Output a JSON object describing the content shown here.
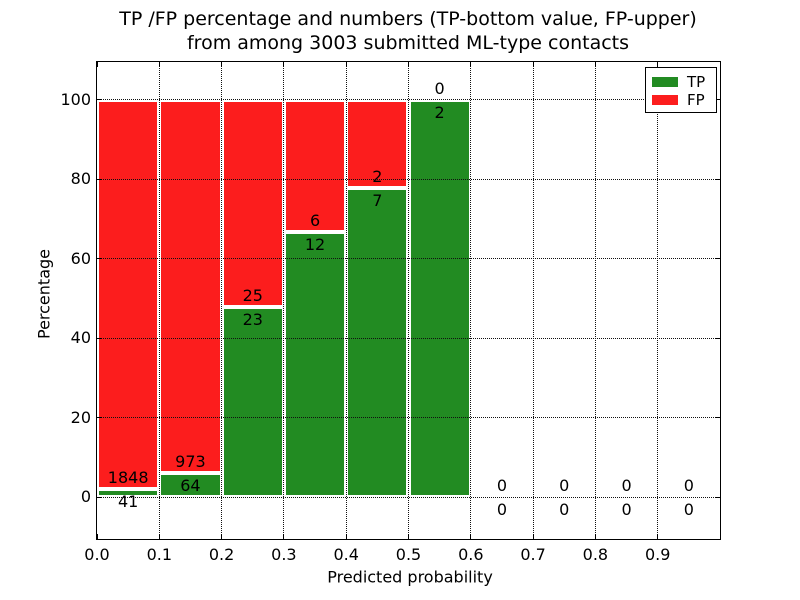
{
  "figure": {
    "title_line1": "TP /FP percentage and numbers (TP-bottom value, FP-upper)",
    "title_line2": "from among 3003 submitted ML-type contacts"
  },
  "chart_data": {
    "type": "bar",
    "stacked": true,
    "normalized": "percent_of_bin_total",
    "title": "TP /FP percentage and numbers (TP-bottom value, FP-upper)\nfrom among 3003 submitted ML-type contacts",
    "xlabel": "Predicted probability",
    "ylabel": "Percentage",
    "bin_edges": [
      0.0,
      0.1,
      0.2,
      0.3,
      0.4,
      0.5,
      0.6,
      0.7,
      0.8,
      0.9,
      1.0
    ],
    "series": [
      {
        "name": "TP",
        "color": "#228b22",
        "counts": [
          41,
          64,
          23,
          12,
          7,
          2,
          0,
          0,
          0,
          0
        ]
      },
      {
        "name": "FP",
        "color": "#fc1d1d",
        "counts": [
          1848,
          973,
          25,
          6,
          2,
          0,
          0,
          0,
          0,
          0
        ]
      }
    ],
    "bar_label_rule": "FP count above green/red boundary, TP count below it",
    "xticks": [
      "0.0",
      "0.1",
      "0.2",
      "0.3",
      "0.4",
      "0.5",
      "0.6",
      "0.7",
      "0.8",
      "0.9"
    ],
    "yticks": [
      0,
      20,
      40,
      60,
      80,
      100
    ],
    "xlim": [
      0.0,
      1.0
    ],
    "ylim": [
      -10.5,
      109.5
    ],
    "grid": true,
    "grid_style": "dotted",
    "bar_edge_color": "#ffffff",
    "legend": {
      "position": "upper right",
      "entries": [
        {
          "label": "TP",
          "color": "#228b22"
        },
        {
          "label": "FP",
          "color": "#fc1d1d"
        }
      ]
    }
  }
}
